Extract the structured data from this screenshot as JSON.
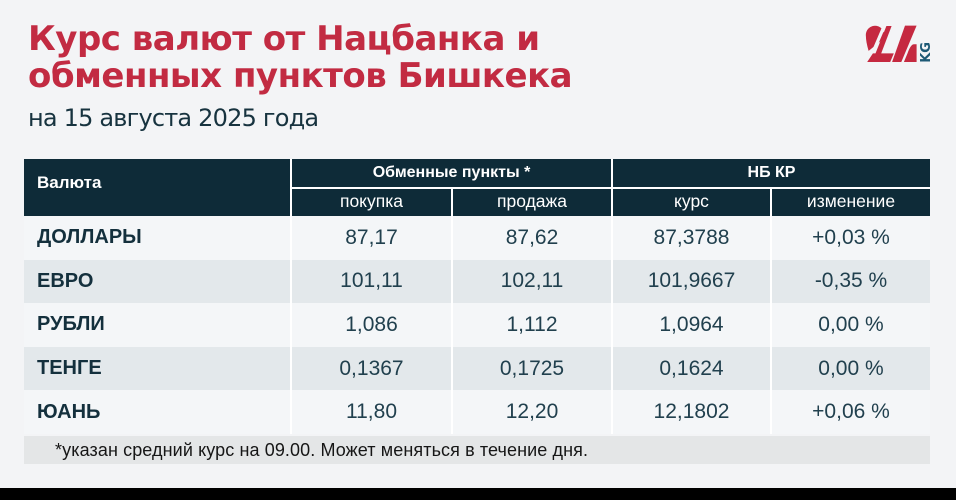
{
  "header": {
    "title_line1": "Курс валют от Нацбанка и",
    "title_line2": "обменных пунктов Бишкека",
    "date": "на 15 августа 2025 года"
  },
  "logo": {
    "number": "24",
    "suffix": "KG",
    "red": "#c52940",
    "teal": "#1d5975"
  },
  "colors": {
    "background": "#f3f4f6",
    "title_red": "#c22b42",
    "header_navy": "#0e2b38",
    "row_light": "#f4f6f8",
    "row_gray": "#e3e8eb",
    "footnote_bg": "#e4e6e7",
    "bottom_bar": "#000000"
  },
  "table": {
    "currency_header": "Валюта",
    "group_exchange": "Обменные пункты *",
    "group_national_bank": "НБ КР",
    "sub_buy": "покупка",
    "sub_sell": "продажа",
    "sub_rate": "курс",
    "sub_change": "изменение",
    "rows": [
      {
        "currency": "ДОЛЛАРЫ",
        "buy": "87,17",
        "sell": "87,62",
        "rate": "87,3788",
        "change": "+0,03 %"
      },
      {
        "currency": "ЕВРО",
        "buy": "101,11",
        "sell": "102,11",
        "rate": "101,9667",
        "change": "-0,35 %"
      },
      {
        "currency": "РУБЛИ",
        "buy": "1,086",
        "sell": "1,112",
        "rate": "1,0964",
        "change": "0,00 %"
      },
      {
        "currency": "ТЕНГЕ",
        "buy": "0,1367",
        "sell": "0,1725",
        "rate": "0,1624",
        "change": "0,00 %"
      },
      {
        "currency": "ЮАНЬ",
        "buy": "11,80",
        "sell": "12,20",
        "rate": "12,1802",
        "change": "+0,06 %"
      }
    ]
  },
  "footnote": "*указан средний курс на 09.00. Может меняться в течение дня.",
  "chart_data": {
    "type": "table",
    "title": "Курс валют от Нацбанка и обменных пунктов Бишкека",
    "subtitle": "на 15 августа 2025 года",
    "column_groups": [
      "Обменные пункты *",
      "НБ КР"
    ],
    "columns": [
      "Валюта",
      "покупка",
      "продажа",
      "курс",
      "изменение"
    ],
    "rows": [
      [
        "ДОЛЛАРЫ",
        "87,17",
        "87,62",
        "87,3788",
        "+0,03 %"
      ],
      [
        "ЕВРО",
        "101,11",
        "102,11",
        "101,9667",
        "-0,35 %"
      ],
      [
        "РУБЛИ",
        "1,086",
        "1,112",
        "1,0964",
        "0,00 %"
      ],
      [
        "ТЕНГЕ",
        "0,1367",
        "0,1725",
        "0,1624",
        "0,00 %"
      ],
      [
        "ЮАНЬ",
        "11,80",
        "12,20",
        "12,1802",
        "+0,06 %"
      ]
    ],
    "note": "*указан средний курс на 09.00. Может меняться в течение дня."
  }
}
